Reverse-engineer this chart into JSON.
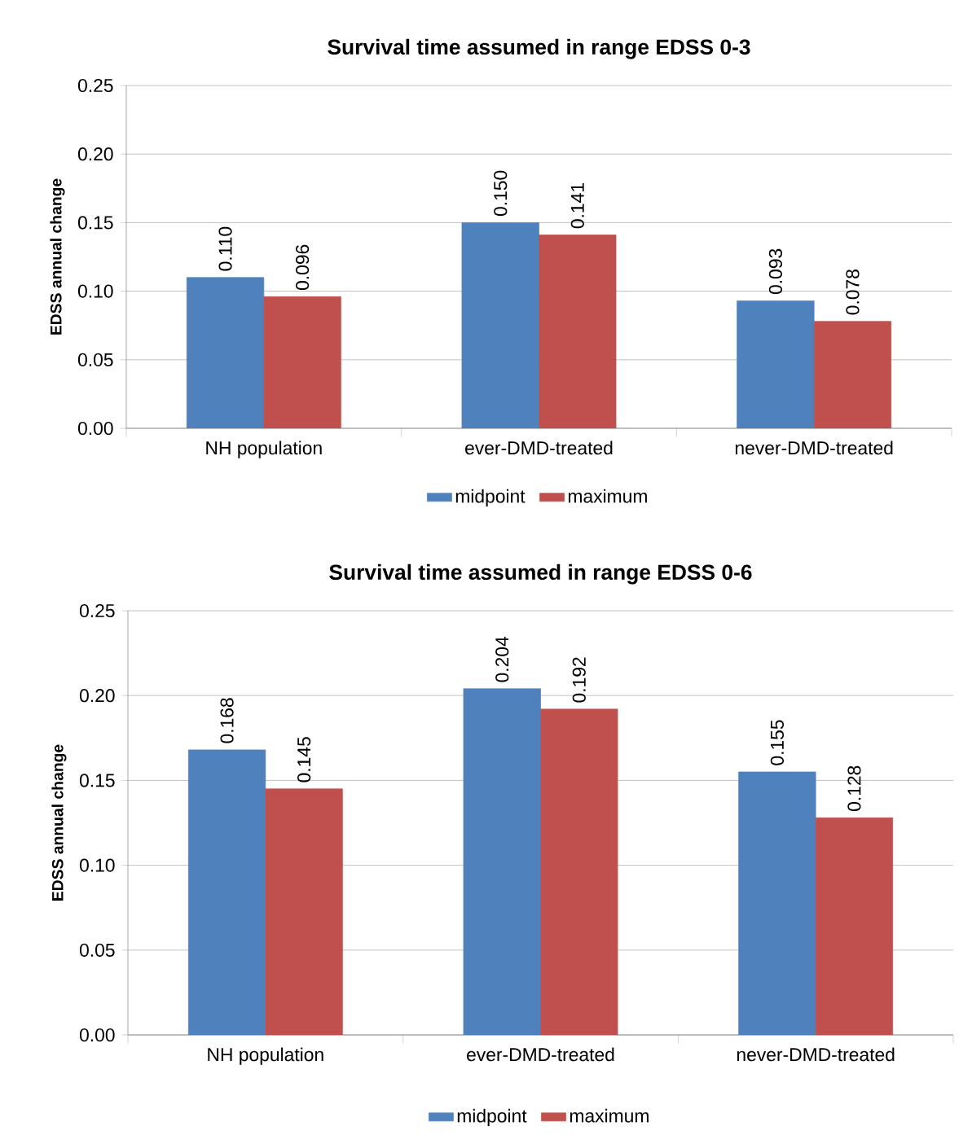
{
  "chart_data": [
    {
      "type": "bar",
      "title": "Survival time assumed in range EDSS 0-3",
      "ylabel": "EDSS annual change",
      "categories": [
        "NH population",
        "ever-DMD-treated",
        "never-DMD-treated"
      ],
      "series": [
        {
          "name": "midpoint",
          "color": "#4f81bd",
          "values": [
            0.11,
            0.15,
            0.093
          ],
          "value_labels": [
            "0.110",
            "0.150",
            "0.093"
          ]
        },
        {
          "name": "maximum",
          "color": "#c0504d",
          "values": [
            0.096,
            0.141,
            0.078
          ],
          "value_labels": [
            "0.096",
            "0.141",
            "0.078"
          ]
        }
      ],
      "ylim": [
        0,
        0.25
      ],
      "yticks": [
        {
          "value": 0,
          "label": "0.00"
        },
        {
          "value": 0.05,
          "label": "0.05"
        },
        {
          "value": 0.1,
          "label": "0.10"
        },
        {
          "value": 0.15,
          "label": "0.15"
        },
        {
          "value": 0.2,
          "label": "0.20"
        },
        {
          "value": 0.25,
          "label": "0.25"
        }
      ],
      "grid": "y",
      "legend": "bottom"
    },
    {
      "type": "bar",
      "title": "Survival time assumed in range EDSS 0-6",
      "ylabel": "EDSS annual change",
      "categories": [
        "NH population",
        "ever-DMD-treated",
        "never-DMD-treated"
      ],
      "series": [
        {
          "name": "midpoint",
          "color": "#4f81bd",
          "values": [
            0.168,
            0.204,
            0.155
          ],
          "value_labels": [
            "0.168",
            "0.204",
            "0.155"
          ]
        },
        {
          "name": "maximum",
          "color": "#c0504d",
          "values": [
            0.145,
            0.192,
            0.128
          ],
          "value_labels": [
            "0.145",
            "0.192",
            "0.128"
          ]
        }
      ],
      "ylim": [
        0,
        0.25
      ],
      "yticks": [
        {
          "value": 0,
          "label": "0.00"
        },
        {
          "value": 0.05,
          "label": "0.05"
        },
        {
          "value": 0.1,
          "label": "0.10"
        },
        {
          "value": 0.15,
          "label": "0.15"
        },
        {
          "value": 0.2,
          "label": "0.20"
        },
        {
          "value": 0.25,
          "label": "0.25"
        }
      ],
      "grid": "y",
      "legend": "bottom"
    }
  ]
}
